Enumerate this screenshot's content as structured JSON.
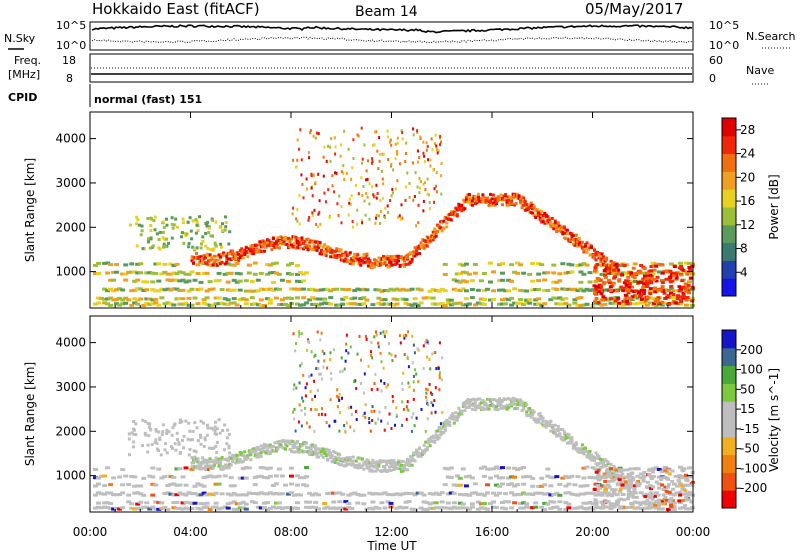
{
  "header": {
    "title": "Hokkaido East (fitACF)",
    "beam": "Beam 14",
    "date": "05/May/2017"
  },
  "top_panel": {
    "nsky_label": "N.Sky",
    "nsearch_label": "N.Search",
    "left_ticks": [
      "10^5",
      "10^0"
    ],
    "right_ticks": [
      "10^5",
      "10^0"
    ],
    "freq_label_1": "Freq.",
    "freq_label_2": "[MHz]",
    "freq_ticks": [
      "18",
      "8"
    ],
    "nave_label": "Nave",
    "nave_ticks": [
      "60",
      "0"
    ],
    "cpid_label": "CPID",
    "cpid_value": "normal (fast) 151"
  },
  "colors": {
    "power_scale": [
      "#1414e6",
      "#2040b0",
      "#3a7a70",
      "#5a9a5a",
      "#9cbf3a",
      "#e6d020",
      "#f0a020",
      "#f07010",
      "#f02808",
      "#e00000"
    ],
    "velocity_scale": [
      "#f00000",
      "#f05010",
      "#f08010",
      "#f0b020",
      "#bebebe",
      "#bebebe",
      "#7cc840",
      "#4aa838",
      "#3a6890",
      "#1414c8"
    ]
  },
  "chart_data": [
    {
      "type": "heatmap",
      "name": "power",
      "ylabel": "Slant Range [km]",
      "x_ticks": [
        "00:00",
        "04:00",
        "08:00",
        "12:00",
        "16:00",
        "20:00",
        "00:00"
      ],
      "y_ticks": [
        1000,
        2000,
        3000,
        4000
      ],
      "ylim": [
        180,
        4600
      ],
      "colorbar_label": "Power [dB]",
      "colorbar_ticks": [
        4,
        8,
        12,
        16,
        20,
        24,
        28
      ],
      "colorbar_range": [
        0,
        30
      ]
    },
    {
      "type": "heatmap",
      "name": "velocity",
      "ylabel": "Slant Range [km]",
      "xlabel": "Time UT",
      "x_ticks": [
        "00:00",
        "04:00",
        "08:00",
        "12:00",
        "16:00",
        "20:00",
        "00:00"
      ],
      "y_ticks": [
        1000,
        2000,
        3000,
        4000
      ],
      "ylim": [
        180,
        4600
      ],
      "colorbar_label": "Velocity [m s^-1]",
      "colorbar_ticks": [
        -200,
        -100,
        -50,
        -15,
        15,
        50,
        100,
        200
      ]
    }
  ]
}
